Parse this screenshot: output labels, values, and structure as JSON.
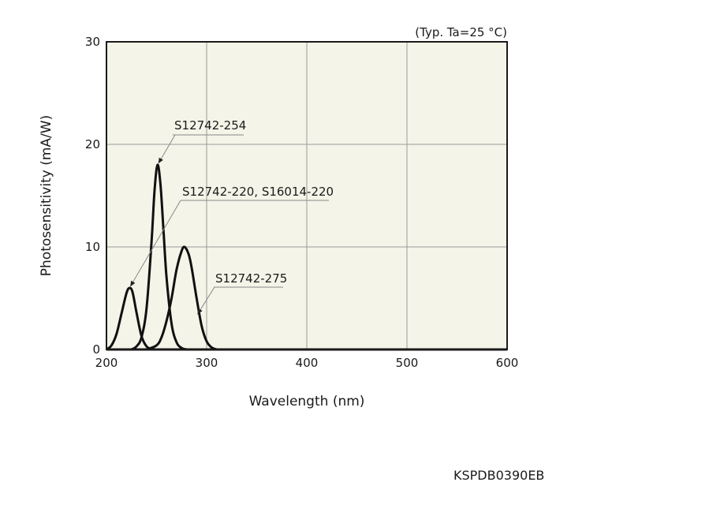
{
  "chart_data": {
    "type": "line",
    "title": "",
    "condition_note": "(Typ. Ta=25 °C)",
    "xlabel": "Wavelength (nm)",
    "ylabel": "Photosensitivity (mA/W)",
    "xlim": [
      200,
      600
    ],
    "ylim": [
      0,
      30
    ],
    "xticks": [
      200,
      300,
      400,
      500,
      600
    ],
    "yticks": [
      0,
      10,
      20,
      30
    ],
    "grid": true,
    "plot_background": "#f5f4e8",
    "series": [
      {
        "name": "S12742-220, S16014-220",
        "x": [
          200,
          205,
          210,
          215,
          220,
          223,
          226,
          230,
          235,
          240,
          245,
          250
        ],
        "y": [
          0,
          0.4,
          1.5,
          3.5,
          5.5,
          6.0,
          5.6,
          3.6,
          1.3,
          0.3,
          0.05,
          0
        ]
      },
      {
        "name": "S12742-254",
        "x": [
          225,
          230,
          235,
          240,
          245,
          248,
          251,
          254,
          257,
          260,
          265,
          270,
          275,
          280
        ],
        "y": [
          0,
          0.3,
          1.2,
          4.0,
          10.5,
          15.5,
          18.0,
          16.0,
          11.5,
          7.0,
          2.5,
          0.7,
          0.15,
          0
        ]
      },
      {
        "name": "S12742-275",
        "x": [
          240,
          250,
          255,
          260,
          265,
          270,
          275,
          278,
          282,
          285,
          290,
          295,
          300,
          305,
          310
        ],
        "y": [
          0,
          0.4,
          1.2,
          2.8,
          5.0,
          7.8,
          9.6,
          10.0,
          9.3,
          8.0,
          5.0,
          2.3,
          0.8,
          0.2,
          0
        ]
      }
    ],
    "annotations": [
      {
        "text": "S12742-254",
        "target": {
          "x": 251,
          "y": 18.0
        }
      },
      {
        "text": "S12742-220, S16014-220",
        "target": {
          "x": 223,
          "y": 6.0
        }
      },
      {
        "text": "S12742-275",
        "target": {
          "x": 290,
          "y": 3.3
        }
      }
    ]
  },
  "document_code": "KSPDB0390EB"
}
